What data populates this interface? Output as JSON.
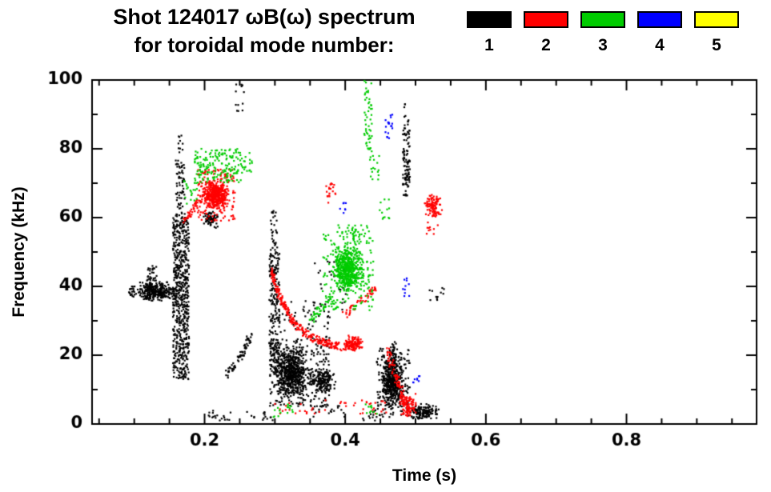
{
  "title": {
    "line1": "Shot 124017 ωB(ω) spectrum",
    "line2": "for toroidal mode number:"
  },
  "legend": {
    "entries": [
      {
        "label": "1",
        "color": "#000000"
      },
      {
        "label": "2",
        "color": "#ff0000"
      },
      {
        "label": "3",
        "color": "#00cc00"
      },
      {
        "label": "4",
        "color": "#0000ff"
      },
      {
        "label": "5",
        "color": "#ffff00"
      }
    ]
  },
  "chart_data": {
    "type": "scatter",
    "title": "Shot 124017 ωB(ω) spectrum for toroidal mode number: 1 2 3 4 5",
    "xlabel": "Time (s)",
    "ylabel": "Frequency (kHz)",
    "xlim": [
      0.04,
      0.985
    ],
    "ylim": [
      0,
      100
    ],
    "xticks": [
      0.2,
      0.4,
      0.6,
      0.8
    ],
    "xtick_labels": [
      "0.2",
      "0.4",
      "0.6",
      "0.8"
    ],
    "yticks": [
      0,
      20,
      40,
      60,
      80,
      100
    ],
    "ytick_labels": [
      "0",
      "20",
      "40",
      "60",
      "80",
      "100"
    ],
    "x_minor_step": 0.05,
    "y_minor_step": 10,
    "grid": false,
    "legend_position": "top-right",
    "marker_size": 2.2,
    "series": [
      {
        "name": "1",
        "color": "#000000",
        "clusters": [
          {
            "x": [
              0.092,
              0.103
            ],
            "y": [
              37,
              40
            ],
            "n": 22
          },
          {
            "x": [
              0.103,
              0.158
            ],
            "y": [
              35.5,
              41.5
            ],
            "n": 300,
            "gauss": true
          },
          {
            "x": [
              0.118,
              0.132
            ],
            "y": [
              41,
              46
            ],
            "n": 30
          },
          {
            "x": [
              0.155,
              0.178
            ],
            "y": [
              13,
              60
            ],
            "n": 620
          },
          {
            "x": [
              0.159,
              0.172
            ],
            "y": [
              60,
              77
            ],
            "n": 70
          },
          {
            "x": [
              0.162,
              0.169
            ],
            "y": [
              77,
              84
            ],
            "n": 10
          },
          {
            "x": [
              0.198,
              0.22
            ],
            "y": [
              57,
              62
            ],
            "n": 75,
            "gauss": true
          },
          {
            "path": [
              [
                0.232,
                14
              ],
              [
                0.252,
                20
              ],
              [
                0.266,
                26
              ]
            ],
            "n": 70,
            "jx": 0.003,
            "jy": 1.2
          },
          {
            "x": [
              0.205,
              0.237
            ],
            "y": [
              1,
              4
            ],
            "n": 18
          },
          {
            "x": [
              0.26,
              0.3
            ],
            "y": [
              1,
              4
            ],
            "n": 15
          },
          {
            "x": [
              0.292,
              0.307
            ],
            "y": [
              15,
              50
            ],
            "n": 210
          },
          {
            "x": [
              0.294,
              0.304
            ],
            "y": [
              50,
              62
            ],
            "n": 30
          },
          {
            "x": [
              0.298,
              0.347
            ],
            "y": [
              7,
              23
            ],
            "n": 540,
            "gauss": true
          },
          {
            "x": [
              0.293,
              0.378
            ],
            "y": [
              5,
              25
            ],
            "n": 290
          },
          {
            "x": [
              0.345,
              0.388
            ],
            "y": [
              9,
              16
            ],
            "n": 150,
            "gauss": true
          },
          {
            "x": [
              0.308,
              0.378
            ],
            "y": [
              25,
              36
            ],
            "n": 50
          },
          {
            "x": [
              0.355,
              0.402
            ],
            "y": [
              33,
              49
            ],
            "n": 32
          },
          {
            "x": [
              0.35,
              0.4
            ],
            "y": [
              2,
              6
            ],
            "n": 20
          },
          {
            "x": [
              0.425,
              0.445
            ],
            "y": [
              1,
              5
            ],
            "n": 12
          },
          {
            "x": [
              0.452,
              0.482
            ],
            "y": [
              4,
              20
            ],
            "n": 430,
            "gauss": true
          },
          {
            "x": [
              0.445,
              0.492
            ],
            "y": [
              2,
              22
            ],
            "n": 160
          },
          {
            "x": [
              0.463,
              0.473
            ],
            "y": [
              18,
              24
            ],
            "n": 40
          },
          {
            "x": [
              0.482,
              0.492
            ],
            "y": [
              66,
              86
            ],
            "n": 95
          },
          {
            "x": [
              0.484,
              0.491
            ],
            "y": [
              86,
              93
            ],
            "n": 10
          },
          {
            "x": [
              0.488,
              0.534
            ],
            "y": [
              1,
              6
            ],
            "n": 150,
            "gauss": true
          },
          {
            "x": [
              0.52,
              0.541
            ],
            "y": [
              36,
              40
            ],
            "n": 12
          },
          {
            "x": [
              0.244,
              0.258
            ],
            "y": [
              90,
              99
            ],
            "n": 12
          }
        ]
      },
      {
        "name": "2",
        "color": "#ff0000",
        "clusters": [
          {
            "x": [
              0.197,
              0.236
            ],
            "y": [
              62,
              71
            ],
            "n": 400,
            "gauss": true
          },
          {
            "x": [
              0.19,
              0.244
            ],
            "y": [
              59,
              74
            ],
            "n": 150
          },
          {
            "path": [
              [
                0.169,
                59
              ],
              [
                0.183,
                62
              ],
              [
                0.196,
                66
              ]
            ],
            "n": 45,
            "jx": 0.003,
            "jy": 1.3
          },
          {
            "path": [
              [
                0.294,
                45
              ],
              [
                0.305,
                38
              ],
              [
                0.316,
                33
              ],
              [
                0.33,
                28.5
              ],
              [
                0.35,
                25.5
              ],
              [
                0.372,
                23.5
              ],
              [
                0.395,
                22.5
              ],
              [
                0.418,
                23.5
              ]
            ],
            "n": 290,
            "jx": 0.002,
            "jy": 1.2
          },
          {
            "x": [
              0.398,
              0.428
            ],
            "y": [
              21,
              26
            ],
            "n": 90,
            "gauss": true
          },
          {
            "x": [
              0.373,
              0.387
            ],
            "y": [
              64,
              70
            ],
            "n": 20
          },
          {
            "path": [
              [
                0.398,
                31.5
              ],
              [
                0.422,
                35.5
              ],
              [
                0.444,
                39.5
              ]
            ],
            "n": 50,
            "jx": 0.002,
            "jy": 1.0
          },
          {
            "path": [
              [
                0.458,
                22
              ],
              [
                0.47,
                15
              ],
              [
                0.48,
                9
              ],
              [
                0.492,
                4
              ]
            ],
            "n": 95,
            "jx": 0.003,
            "jy": 1.6
          },
          {
            "x": [
              0.474,
              0.504
            ],
            "y": [
              2,
              9
            ],
            "n": 75,
            "gauss": true
          },
          {
            "x": [
              0.512,
              0.538
            ],
            "y": [
              60,
              67
            ],
            "n": 105,
            "gauss": true
          },
          {
            "x": [
              0.515,
              0.532
            ],
            "y": [
              55,
              59
            ],
            "n": 10
          },
          {
            "x": [
              0.3,
              0.46
            ],
            "y": [
              3,
              7
            ],
            "n": 45
          }
        ]
      },
      {
        "name": "3",
        "color": "#00cc00",
        "clusters": [
          {
            "x": [
              0.185,
              0.252
            ],
            "y": [
              70,
              80
            ],
            "n": 175
          },
          {
            "x": [
              0.17,
              0.19
            ],
            "y": [
              64,
              71
            ],
            "n": 18
          },
          {
            "x": [
              0.252,
              0.268
            ],
            "y": [
              73,
              79
            ],
            "n": 20
          },
          {
            "x": [
              0.382,
              0.427
            ],
            "y": [
              38,
              52
            ],
            "n": 540,
            "gauss": true
          },
          {
            "x": [
              0.368,
              0.44
            ],
            "y": [
              33,
              56
            ],
            "n": 175
          },
          {
            "path": [
              [
                0.35,
                30.5
              ],
              [
                0.366,
                33.5
              ],
              [
                0.382,
                36.5
              ]
            ],
            "n": 45,
            "jx": 0.003,
            "jy": 1.4
          },
          {
            "x": [
              0.39,
              0.432
            ],
            "y": [
              52,
              58
            ],
            "n": 40
          },
          {
            "x": [
              0.427,
              0.438
            ],
            "y": [
              79,
              100
            ],
            "n": 52
          },
          {
            "x": [
              0.435,
              0.449
            ],
            "y": [
              71,
              78
            ],
            "n": 16
          },
          {
            "x": [
              0.449,
              0.463
            ],
            "y": [
              59,
              67
            ],
            "n": 12
          },
          {
            "x": [
              0.298,
              0.326
            ],
            "y": [
              2,
              6
            ],
            "n": 16
          },
          {
            "x": [
              0.428,
              0.448
            ],
            "y": [
              2,
              6
            ],
            "n": 10
          }
        ]
      },
      {
        "name": "4",
        "color": "#0000ff",
        "clusters": [
          {
            "x": [
              0.457,
              0.467
            ],
            "y": [
              83,
              90
            ],
            "n": 18
          },
          {
            "x": [
              0.392,
              0.401
            ],
            "y": [
              61,
              65
            ],
            "n": 7
          },
          {
            "x": [
              0.482,
              0.491
            ],
            "y": [
              37,
              43
            ],
            "n": 10
          },
          {
            "x": [
              0.496,
              0.506
            ],
            "y": [
              12,
              16
            ],
            "n": 8
          }
        ]
      },
      {
        "name": "5",
        "color": "#ffff00",
        "clusters": []
      }
    ]
  }
}
